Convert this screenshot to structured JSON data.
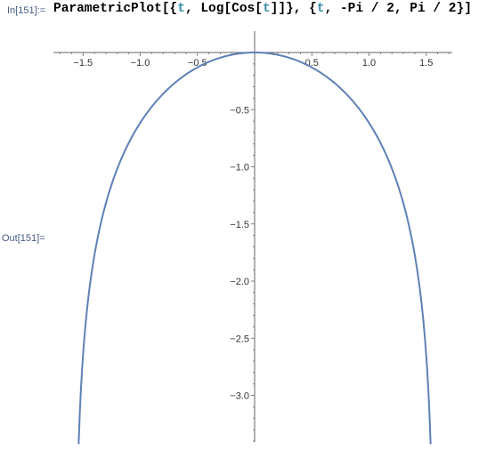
{
  "cell": {
    "in_label": "In[151]:=",
    "out_label": "Out[151]=",
    "code": {
      "p1": "ParametricPlot[{",
      "v1": "t",
      "p2": ", Log[Cos[",
      "v2": "t",
      "p3": "]]}, {",
      "v3": "t",
      "p4": ", -Pi / 2, Pi / 2}]"
    }
  },
  "colors": {
    "curve": "#5e81b5",
    "axis": "#666666",
    "label_blue": "#445a82",
    "var": "#3a8fa8"
  },
  "chart_data": {
    "type": "line",
    "title": "",
    "xlabel": "",
    "ylabel": "",
    "x_ticks": [
      "-1.5",
      "-1.0",
      "-0.5",
      "0.5",
      "1.0",
      "1.5"
    ],
    "y_ticks": [
      "-0.5",
      "-1.0",
      "-1.5",
      "-2.0",
      "-2.5",
      "-3.0"
    ],
    "xlim": [
      -1.8,
      1.8
    ],
    "ylim": [
      -3.4,
      0
    ],
    "grid": false,
    "series": [
      {
        "curve": "x = t, y = log(cos(t))",
        "t_range": [
          -1.5383,
          1.5383
        ]
      }
    ]
  }
}
